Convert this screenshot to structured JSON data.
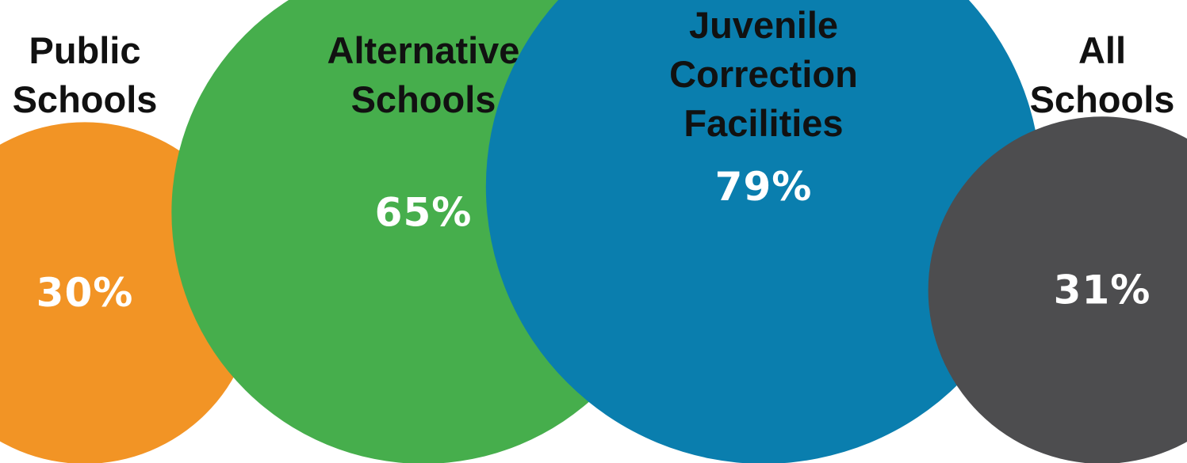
{
  "chart_data": {
    "type": "bubble",
    "categories": [
      "Public Schools",
      "Alternative Schools",
      "Juvenile Correction Facilities",
      "All Schools"
    ],
    "category_label_lines": [
      [
        "Public",
        "Schools"
      ],
      [
        "Alternative",
        "Schools"
      ],
      [
        "Juvenile",
        "Correction",
        "Facilities"
      ],
      [
        "All",
        "Schools"
      ]
    ],
    "values": [
      30,
      65,
      79,
      31
    ],
    "value_labels": [
      "30%",
      "65%",
      "79%",
      "31%"
    ],
    "colors": [
      "#F29425",
      "#46AE4C",
      "#0A7EAE",
      "#4D4D4F"
    ],
    "unit": "%"
  }
}
